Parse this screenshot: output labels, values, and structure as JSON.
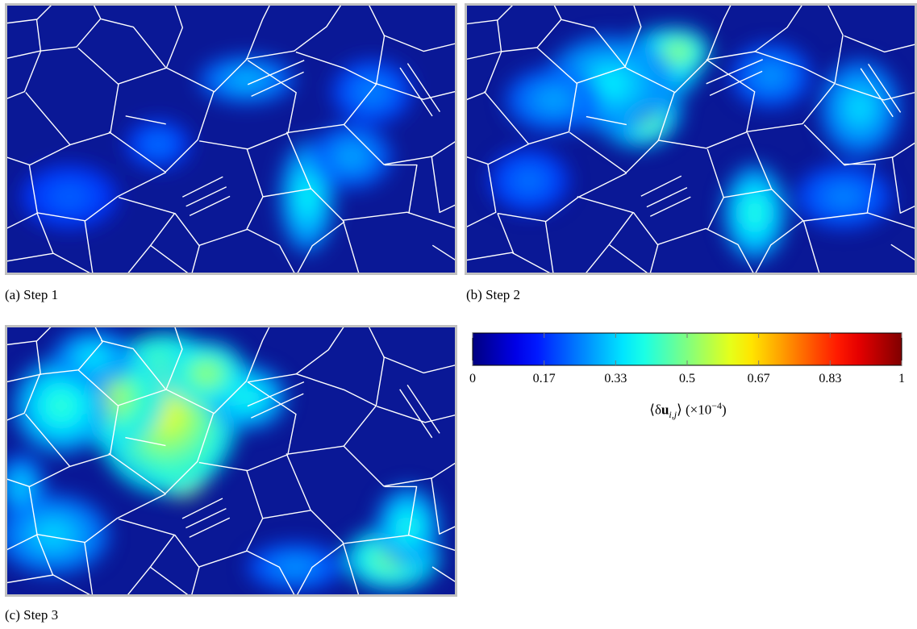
{
  "panels": [
    {
      "id": "a",
      "caption": "(a) Step 1",
      "step": 1
    },
    {
      "id": "b",
      "caption": "(b) Step 2",
      "step": 2
    },
    {
      "id": "c",
      "caption": "(c) Step 3",
      "step": 3
    }
  ],
  "colorbar": {
    "colormap": "jet",
    "min": 0,
    "max": 1,
    "ticks": [
      "0",
      "0.17",
      "0.33",
      "0.5",
      "0.67",
      "0.83",
      "1"
    ],
    "tick_values": [
      0,
      0.1667,
      0.3333,
      0.5,
      0.6667,
      0.8333,
      1
    ],
    "label_symbol": "δ",
    "label_var": "u",
    "label_sub": "i,j",
    "label_scale": "×10",
    "label_exp": "−4"
  },
  "colors": {
    "background_field": "#0a1896",
    "grain_boundary": "#ffffff",
    "frame": "#c0c0c0"
  }
}
